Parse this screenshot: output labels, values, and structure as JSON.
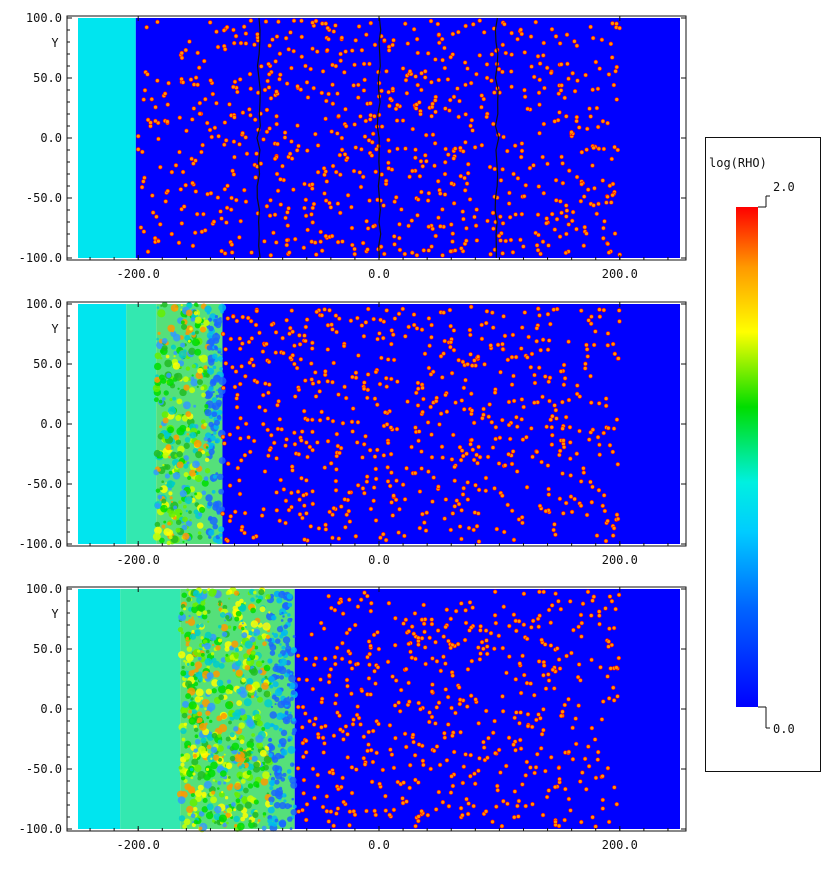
{
  "chart_data": [
    {
      "type": "heatmap",
      "panel": 1,
      "ylabel": "Y",
      "xlim": [
        -252,
        252
      ],
      "ylim": [
        -100,
        100
      ],
      "xticks": [
        -200.0,
        0.0,
        200.0
      ],
      "xtick_labels": [
        "-200.0",
        "0.0",
        "200.0"
      ],
      "yticks": [
        100.0,
        50.0,
        0.0,
        -50.0,
        -100.0
      ],
      "ytick_labels": [
        "100.0",
        "50.0",
        "0.0",
        "-50.0",
        "-100.0"
      ],
      "regions": [
        {
          "x0": -250,
          "x1": -202,
          "level": 0.55
        },
        {
          "x0": -202,
          "x1": 250,
          "level": 0.0
        }
      ],
      "clump_x_range": [
        -200,
        200
      ],
      "contour_lines_x": [
        -100,
        0,
        98
      ],
      "mixing_zone": null
    },
    {
      "type": "heatmap",
      "panel": 2,
      "ylabel": "Y",
      "xlim": [
        -252,
        252
      ],
      "ylim": [
        -100,
        100
      ],
      "xticks": [
        -200.0,
        0.0,
        200.0
      ],
      "xtick_labels": [
        "-200.0",
        "0.0",
        "200.0"
      ],
      "yticks": [
        100.0,
        50.0,
        0.0,
        -50.0,
        -100.0
      ],
      "ytick_labels": [
        "100.0",
        "50.0",
        "0.0",
        "-50.0",
        "-100.0"
      ],
      "regions": [
        {
          "x0": -250,
          "x1": -210,
          "level": 0.55
        },
        {
          "x0": -210,
          "x1": -185,
          "level": 0.6
        },
        {
          "x0": -185,
          "x1": -130,
          "level": 0.7
        },
        {
          "x0": -130,
          "x1": 250,
          "level": 0.0
        }
      ],
      "clump_x_range": [
        -130,
        200
      ],
      "mixing_zone": [
        -185,
        -130
      ]
    },
    {
      "type": "heatmap",
      "panel": 3,
      "ylabel": "Y",
      "xlim": [
        -252,
        252
      ],
      "ylim": [
        -100,
        100
      ],
      "xticks": [
        -200.0,
        0.0,
        200.0
      ],
      "xtick_labels": [
        "-200.0",
        "0.0",
        "200.0"
      ],
      "yticks": [
        100.0,
        50.0,
        0.0,
        -50.0,
        -100.0
      ],
      "ytick_labels": [
        "100.0",
        "50.0",
        "0.0",
        "-50.0",
        "-100.0"
      ],
      "regions": [
        {
          "x0": -250,
          "x1": -215,
          "level": 0.55
        },
        {
          "x0": -215,
          "x1": -165,
          "level": 0.6
        },
        {
          "x0": -165,
          "x1": -70,
          "level": 0.72
        },
        {
          "x0": -70,
          "x1": 250,
          "level": 0.0
        }
      ],
      "clump_x_range": [
        -68,
        200
      ],
      "mixing_zone": [
        -165,
        -70
      ]
    }
  ],
  "colorbar": {
    "label": "log(RHO)",
    "min_label": "0.0",
    "max_label": "2.0",
    "vmin": 0.0,
    "vmax": 2.0
  },
  "colors": {
    "low": "#0000ff",
    "cyan": "#00e5ef",
    "green": "#00dd00",
    "yellow": "#ffff00",
    "orange": "#ff9900",
    "high": "#ff0000"
  }
}
